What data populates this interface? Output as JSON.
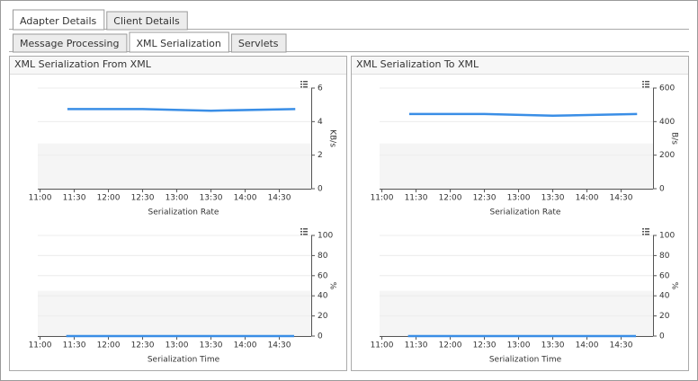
{
  "tabs": {
    "items": [
      "Adapter Details",
      "Client Details"
    ],
    "active": 0
  },
  "subtabs": {
    "items": [
      "Message Processing",
      "XML Serialization",
      "Servlets"
    ],
    "active": 1
  },
  "panels": [
    {
      "title": "XML Serialization From XML",
      "charts": [
        {
          "type": "line",
          "x_label": "Serialization Rate",
          "y_label": "KB/s",
          "color": "#3a8ee6",
          "grid": true,
          "x": [
            684,
            750,
            810,
            884
          ],
          "values": [
            4.75,
            4.75,
            4.65,
            4.75
          ],
          "xlim": [
            658,
            898
          ],
          "ylim": [
            0,
            6
          ],
          "yticks": [
            0,
            2,
            4,
            6
          ],
          "xticks": [
            {
              "value": 660,
              "label": "11:00"
            },
            {
              "value": 690,
              "label": "11:30"
            },
            {
              "value": 720,
              "label": "12:00"
            },
            {
              "value": 750,
              "label": "12:30"
            },
            {
              "value": 780,
              "label": "13:00"
            },
            {
              "value": 810,
              "label": "13:30"
            },
            {
              "value": 840,
              "label": "14:00"
            },
            {
              "value": 870,
              "label": "14:30"
            }
          ]
        },
        {
          "type": "line",
          "x_label": "Serialization Time",
          "y_label": "%",
          "color": "#3a8ee6",
          "grid": true,
          "x": [
            683,
            750,
            810,
            883
          ],
          "values": [
            0,
            0,
            0,
            0
          ],
          "xlim": [
            658,
            898
          ],
          "ylim": [
            0,
            100
          ],
          "yticks": [
            0,
            20,
            40,
            60,
            80,
            100
          ],
          "xticks": [
            {
              "value": 660,
              "label": "11:00"
            },
            {
              "value": 690,
              "label": "11:30"
            },
            {
              "value": 720,
              "label": "12:00"
            },
            {
              "value": 750,
              "label": "12:30"
            },
            {
              "value": 780,
              "label": "13:00"
            },
            {
              "value": 810,
              "label": "13:30"
            },
            {
              "value": 840,
              "label": "14:00"
            },
            {
              "value": 870,
              "label": "14:30"
            }
          ]
        }
      ]
    },
    {
      "title": "XML Serialization To XML",
      "charts": [
        {
          "type": "line",
          "x_label": "Serialization Rate",
          "y_label": "B/s",
          "color": "#3a8ee6",
          "grid": true,
          "x": [
            684,
            750,
            810,
            884
          ],
          "values": [
            445,
            445,
            435,
            445
          ],
          "xlim": [
            658,
            898
          ],
          "ylim": [
            0,
            600
          ],
          "yticks": [
            0,
            200,
            400,
            600
          ],
          "xticks": [
            {
              "value": 660,
              "label": "11:00"
            },
            {
              "value": 690,
              "label": "11:30"
            },
            {
              "value": 720,
              "label": "12:00"
            },
            {
              "value": 750,
              "label": "12:30"
            },
            {
              "value": 780,
              "label": "13:00"
            },
            {
              "value": 810,
              "label": "13:30"
            },
            {
              "value": 840,
              "label": "14:00"
            },
            {
              "value": 870,
              "label": "14:30"
            }
          ]
        },
        {
          "type": "line",
          "x_label": "Serialization Time",
          "y_label": "%",
          "color": "#3a8ee6",
          "grid": true,
          "x": [
            683,
            750,
            810,
            883
          ],
          "values": [
            0,
            0,
            0,
            0
          ],
          "xlim": [
            658,
            898
          ],
          "ylim": [
            0,
            100
          ],
          "yticks": [
            0,
            20,
            40,
            60,
            80,
            100
          ],
          "xticks": [
            {
              "value": 660,
              "label": "11:00"
            },
            {
              "value": 690,
              "label": "11:30"
            },
            {
              "value": 720,
              "label": "12:00"
            },
            {
              "value": 750,
              "label": "12:30"
            },
            {
              "value": 780,
              "label": "13:00"
            },
            {
              "value": 810,
              "label": "13:30"
            },
            {
              "value": 840,
              "label": "14:00"
            },
            {
              "value": 870,
              "label": "14:30"
            }
          ]
        }
      ]
    }
  ]
}
